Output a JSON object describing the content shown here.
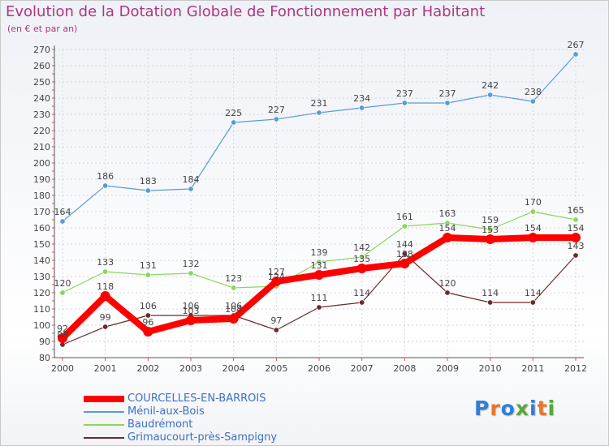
{
  "header": {
    "title": "Evolution de la Dotation Globale de Fonctionnement par Habitant",
    "subtitle": "(en € et par an)"
  },
  "logo": {
    "text": "Proxiti",
    "letter_colors": [
      "#2f7fd8",
      "#e8762a",
      "#2f7fd8",
      "#5aa63a",
      "#2f7fd8",
      "#e8762a",
      "#5aa63a"
    ]
  },
  "chart_data": {
    "type": "line",
    "title": "Evolution de la Dotation Globale de Fonctionnement par Habitant",
    "subtitle": "(en € et par an)",
    "x": [
      "2000",
      "2001",
      "2002",
      "2003",
      "2004",
      "2005",
      "2006",
      "2007",
      "2008",
      "2009",
      "2010",
      "2011",
      "2012"
    ],
    "ylim": [
      80,
      270
    ],
    "yticks": [
      80,
      90,
      100,
      110,
      120,
      130,
      140,
      150,
      160,
      170,
      180,
      190,
      200,
      210,
      220,
      230,
      240,
      250,
      260,
      270
    ],
    "grid": true,
    "legend_position": "bottom-left",
    "series": [
      {
        "name": "Ménil-aux-Bois",
        "color": "#5b9bd5",
        "width": 1.2,
        "values": [
          164,
          186,
          183,
          184,
          225,
          227,
          231,
          234,
          237,
          237,
          242,
          238,
          267
        ],
        "labels": [
          "164",
          "186",
          "183",
          "184",
          "225",
          "227",
          "231",
          "234",
          "237",
          "237",
          "242",
          "238",
          "267"
        ]
      },
      {
        "name": "Baudrémont",
        "color": "#8ed55a",
        "width": 1.2,
        "values": [
          120,
          133,
          131,
          132,
          123,
          124,
          139,
          142,
          161,
          163,
          159,
          170,
          165
        ],
        "labels": [
          "120",
          "133",
          "131",
          "132",
          "123",
          "124",
          "139",
          "142",
          "161",
          "163",
          "159",
          "170",
          "165"
        ]
      },
      {
        "name": "Grimaucourt-près-Sampigny",
        "color": "#6b2a2a",
        "width": 1.2,
        "values": [
          88,
          99,
          106,
          106,
          106,
          97,
          111,
          114,
          144,
          120,
          114,
          114,
          143
        ],
        "labels": [
          "88",
          "99",
          "106",
          "106",
          "106",
          "97",
          "111",
          "114",
          "144",
          "120",
          "114",
          "114",
          "143"
        ]
      },
      {
        "name": "COURCELLES-EN-BARROIS",
        "color": "#ff0000",
        "width": 8,
        "values": [
          92,
          118,
          96,
          103,
          104,
          127,
          131,
          135,
          138,
          154,
          153,
          154,
          154
        ],
        "labels": [
          "92",
          "118",
          "96",
          "103",
          "104",
          "127",
          "131",
          "135",
          "138",
          "154",
          "153",
          "154",
          "154"
        ]
      }
    ],
    "legend": [
      {
        "name": "COURCELLES-EN-BARROIS",
        "color": "#ff0000",
        "thickness": 8
      },
      {
        "name": "Ménil-aux-Bois",
        "color": "#5b9bd5",
        "thickness": 2
      },
      {
        "name": "Baudrémont",
        "color": "#8ed55a",
        "thickness": 2
      },
      {
        "name": "Grimaucourt-près-Sampigny",
        "color": "#6b2a2a",
        "thickness": 2
      }
    ]
  }
}
